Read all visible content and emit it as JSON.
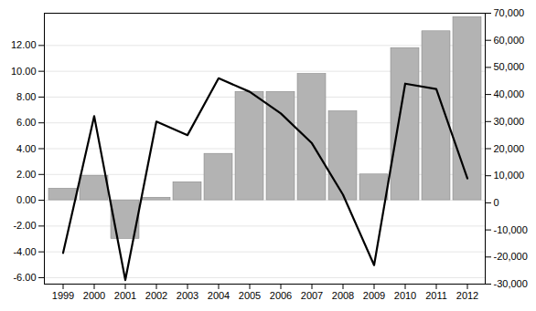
{
  "chart_data": {
    "type": "bar",
    "categories": [
      "1999",
      "2000",
      "2001",
      "2002",
      "2003",
      "2004",
      "2005",
      "2006",
      "2007",
      "2008",
      "2009",
      "2010",
      "2011",
      "2012"
    ],
    "series": [
      {
        "type": "bar",
        "color": "#b3b3b3",
        "values": [
          0.9,
          1.9,
          -3.0,
          0.2,
          1.4,
          3.6,
          8.4,
          8.4,
          9.8,
          6.9,
          2.0,
          11.8,
          13.1,
          14.2
        ]
      },
      {
        "type": "line",
        "axis": "y2",
        "color": "#000000",
        "values": [
          -18500,
          32000,
          -28500,
          30000,
          25000,
          46000,
          41000,
          33000,
          22000,
          3000,
          -23000,
          44000,
          42000,
          9000
        ]
      }
    ],
    "ylim": [
      -6.5,
      14.5
    ],
    "yticks": [
      {
        "value": -6,
        "label": "-6.00"
      },
      {
        "value": -4,
        "label": "-4.00"
      },
      {
        "value": -2,
        "label": "-2.00"
      },
      {
        "value": 0,
        "label": "0.00"
      },
      {
        "value": 2,
        "label": "2.00"
      },
      {
        "value": 4,
        "label": "4.00"
      },
      {
        "value": 6,
        "label": "6.00"
      },
      {
        "value": 8,
        "label": "8.00"
      },
      {
        "value": 10,
        "label": "10.00"
      },
      {
        "value": 12,
        "label": "12.00"
      }
    ],
    "y2lim": [
      -30000,
      70000
    ],
    "y2ticks": [
      {
        "value": -30000,
        "label": "-30,000"
      },
      {
        "value": -20000,
        "label": "-20,000"
      },
      {
        "value": -10000,
        "label": "-10,000"
      },
      0,
      {
        "value": 10000,
        "label": "10,000"
      },
      {
        "value": 20000,
        "label": "20,000"
      },
      {
        "value": 30000,
        "label": "30,000"
      },
      {
        "value": 40000,
        "label": "40,000"
      },
      {
        "value": 50000,
        "label": "50,000"
      },
      {
        "value": 60000,
        "label": "60,000"
      },
      {
        "value": 70000,
        "label": "70,000"
      }
    ],
    "grid": true
  }
}
